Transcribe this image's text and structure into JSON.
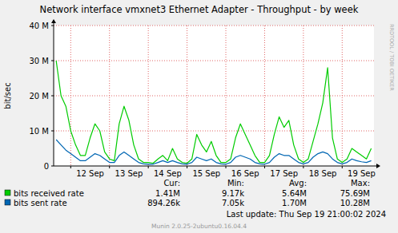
{
  "chart_data": {
    "type": "line",
    "title": "Network interface vmxnet3 Ethernet Adapter - Throughput - by week",
    "y_label": "bit/sec",
    "x": [
      11.625,
      11.75,
      11.875,
      12,
      12.125,
      12.25,
      12.375,
      12.5,
      12.625,
      12.75,
      12.875,
      13,
      13.125,
      13.25,
      13.375,
      13.5,
      13.625,
      13.75,
      13.875,
      14,
      14.125,
      14.25,
      14.375,
      14.5,
      14.625,
      14.75,
      14.875,
      15,
      15.125,
      15.25,
      15.375,
      15.5,
      15.625,
      15.75,
      15.875,
      16,
      16.125,
      16.25,
      16.375,
      16.5,
      16.625,
      16.75,
      16.875,
      17,
      17.125,
      17.25,
      17.375,
      17.5,
      17.625,
      17.75,
      17.875,
      18,
      18.125,
      18.25,
      18.375,
      18.5,
      18.625,
      18.75,
      18.875,
      19,
      19.125,
      19.25,
      19.375,
      19.5,
      19.625,
      19.75
    ],
    "series": [
      {
        "name": "bits received rate",
        "color": "#00cc00",
        "values": [
          30000000,
          20000000,
          17000000,
          10000000,
          6000000,
          3000000,
          3000000,
          8000000,
          12000000,
          10000000,
          4000000,
          2000000,
          1500000,
          12000000,
          17000000,
          13000000,
          6000000,
          2000000,
          1000000,
          1000000,
          800000,
          2000000,
          3000000,
          1500000,
          5000000,
          2000000,
          1000000,
          800000,
          2000000,
          9000000,
          6000000,
          4000000,
          7000000,
          3000000,
          1000000,
          1000000,
          2000000,
          8000000,
          12000000,
          9000000,
          6000000,
          3000000,
          1000000,
          1000000,
          3000000,
          9000000,
          14000000,
          11000000,
          13000000,
          6000000,
          2000000,
          1000000,
          2000000,
          7000000,
          12000000,
          18000000,
          28000000,
          8000000,
          2000000,
          1000000,
          2000000,
          5000000,
          4000000,
          3000000,
          2000000,
          5000000
        ],
        "stats": [
          "1.41M",
          "9.17k",
          "5.64M",
          "75.69M"
        ]
      },
      {
        "name": "bits sent rate",
        "color": "#0066b3",
        "values": [
          7500000,
          6000000,
          4500000,
          3500000,
          2500000,
          1500000,
          1500000,
          2500000,
          3500000,
          3000000,
          2000000,
          1000000,
          1000000,
          3000000,
          4000000,
          3000000,
          2000000,
          1000000,
          600000,
          500000,
          500000,
          1000000,
          1500000,
          1000000,
          1500000,
          1000000,
          600000,
          500000,
          1000000,
          2500000,
          2000000,
          1500000,
          2000000,
          1000000,
          600000,
          500000,
          1000000,
          2500000,
          3000000,
          2500000,
          2000000,
          1000000,
          600000,
          500000,
          1000000,
          2500000,
          3500000,
          3000000,
          3000000,
          2000000,
          1000000,
          600000,
          1000000,
          2500000,
          3500000,
          4000000,
          3500000,
          2000000,
          1000000,
          600000,
          1000000,
          2000000,
          1500000,
          1200000,
          1000000,
          1500000
        ],
        "stats": [
          "894.26k",
          "7.05k",
          "1.70M",
          "10.28M"
        ]
      }
    ],
    "stat_headers": [
      "Cur:",
      "Min:",
      "Avg:",
      "Max:"
    ],
    "xlim": [
      11.56,
      19.82
    ],
    "xticks": [
      {
        "value": 12,
        "label": "12 Sep"
      },
      {
        "value": 13,
        "label": "13 Sep"
      },
      {
        "value": 14,
        "label": "14 Sep"
      },
      {
        "value": 15,
        "label": "15 Sep"
      },
      {
        "value": 16,
        "label": "16 Sep"
      },
      {
        "value": 17,
        "label": "17 Sep"
      },
      {
        "value": 18,
        "label": "18 Sep"
      },
      {
        "value": 19,
        "label": "19 Sep"
      }
    ],
    "ylim": [
      0,
      40000000
    ],
    "yticks": [
      0,
      {
        "value": 10000000,
        "label": "10 M"
      },
      {
        "value": 20000000,
        "label": "20 M"
      },
      {
        "value": 30000000,
        "label": "30 M"
      },
      {
        "value": 40000000,
        "label": "40 M"
      }
    ],
    "grid": true,
    "last_update": "Last update:  Thu Sep 19 21:00:02 2024",
    "footer": "Munin 2.0.25-2ubuntu0.16.04.4",
    "watermark": "RRDTOOL / TOBI OETIKER"
  }
}
